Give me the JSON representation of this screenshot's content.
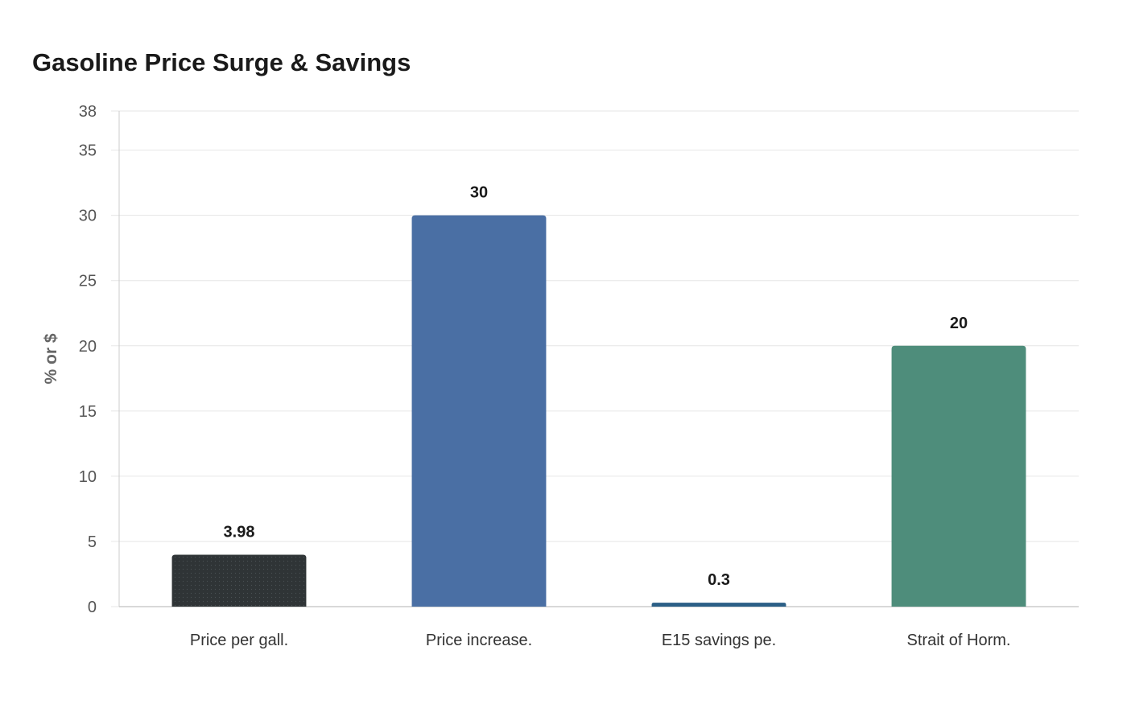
{
  "chart_data": {
    "type": "bar",
    "title": "Gasoline Price Surge & Savings",
    "ylabel": "% or $",
    "xlabel": "",
    "categories": [
      "Price per gall.",
      "Price increase.",
      "E15 savings pe.",
      "Strait of Horm."
    ],
    "values": [
      3.98,
      30,
      0.3,
      20
    ],
    "value_labels": [
      "3.98",
      "30",
      "0.3",
      "20"
    ],
    "colors": [
      "#2f3436",
      "#4a6fa4",
      "#2b5f86",
      "#4e8d7b"
    ],
    "ylim": [
      0,
      38
    ],
    "yticks": [
      0,
      5,
      10,
      15,
      20,
      25,
      30,
      35,
      38
    ],
    "grid": true,
    "legend": "none"
  }
}
